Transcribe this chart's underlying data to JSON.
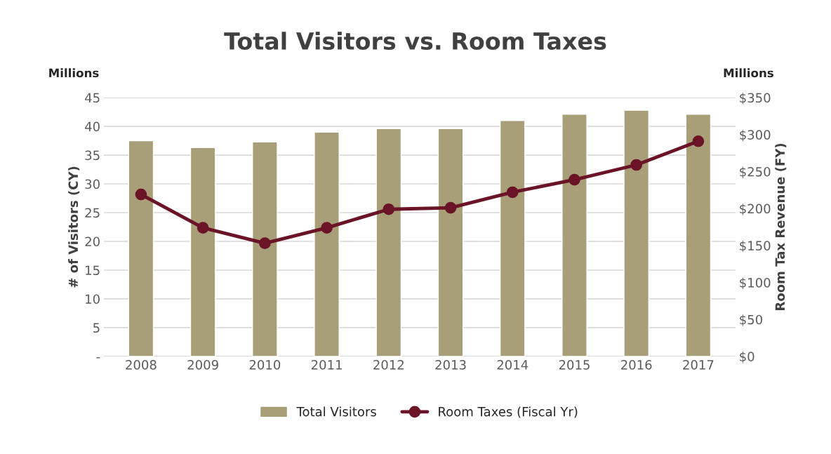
{
  "chart_data": {
    "type": "bar",
    "title": "Total Visitors vs. Room Taxes",
    "categories": [
      "2008",
      "2009",
      "2010",
      "2011",
      "2012",
      "2013",
      "2014",
      "2015",
      "2016",
      "2017"
    ],
    "series": [
      {
        "name": "Total Visitors",
        "color": "#a89f78",
        "values": [
          37.5,
          36.3,
          37.3,
          39.0,
          39.6,
          39.6,
          41.0,
          42.1,
          42.8,
          42.1
        ]
      },
      {
        "name": "Room Taxes (Fiscal Yr)",
        "type": "line",
        "axis": "y2",
        "color": "#6b1428",
        "marker": "circle",
        "values": [
          219,
          174,
          153,
          174,
          199,
          201,
          222,
          239,
          259,
          291
        ]
      }
    ],
    "ylabel": "# of Visitors (CY)",
    "y2label": "Room Tax Revenue (FY)",
    "ylim": [
      0,
      45
    ],
    "yticks": [
      {
        "value": 0,
        "label": "-"
      },
      5,
      10,
      15,
      20,
      25,
      30,
      35,
      40,
      45
    ],
    "y2lim": [
      0,
      350
    ],
    "y2ticks": [
      {
        "value": 0,
        "label": "$0"
      },
      {
        "value": 50,
        "label": "$50"
      },
      {
        "value": 100,
        "label": "$100"
      },
      {
        "value": 150,
        "label": "$150"
      },
      {
        "value": 200,
        "label": "$200"
      },
      {
        "value": 250,
        "label": "$250"
      },
      {
        "value": 300,
        "label": "$300"
      },
      {
        "value": 350,
        "label": "$350"
      }
    ],
    "annotations": [
      "Millions",
      "Millions"
    ],
    "grid": "y",
    "legend": "bottom"
  }
}
